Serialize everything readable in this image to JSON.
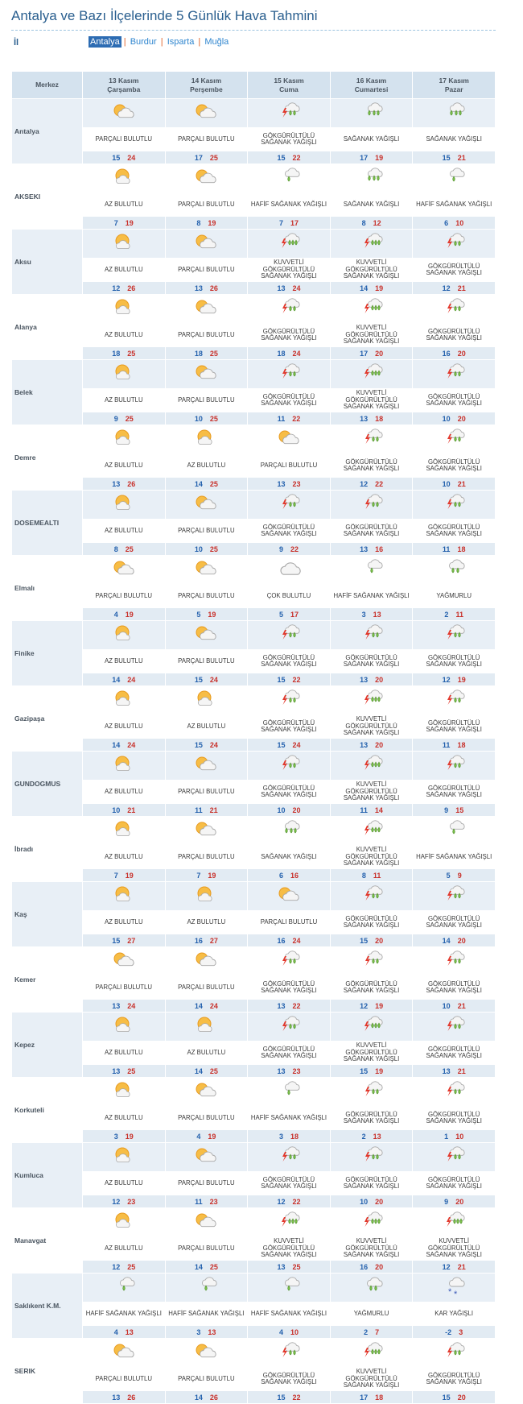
{
  "header": {
    "title": "Antalya ve Bazı İlçelerinde 5 Günlük Hava Tahmini",
    "label": "İl",
    "tabs": [
      "Antalya",
      "Burdur",
      "Isparta",
      "Muğla"
    ]
  },
  "table": {
    "corner": "Merkez",
    "columns": [
      {
        "date": "13 Kasım",
        "day": "Çarşamba"
      },
      {
        "date": "14 Kasım",
        "day": "Perşembe"
      },
      {
        "date": "15 Kasım",
        "day": "Cuma"
      },
      {
        "date": "16 Kasım",
        "day": "Cumartesi"
      },
      {
        "date": "17 Kasım",
        "day": "Pazar"
      }
    ],
    "rows": [
      {
        "name": "Antalya",
        "days": [
          {
            "condition": "PARÇALI BULUTLU",
            "min": 15,
            "max": 24
          },
          {
            "condition": "PARÇALI BULUTLU",
            "min": 17,
            "max": 25
          },
          {
            "condition": "GÖKGÜRÜLTÜLÜ SAĞANAK YAĞIŞLI",
            "min": 15,
            "max": 22
          },
          {
            "condition": "SAĞANAK YAĞIŞLI",
            "min": 17,
            "max": 19
          },
          {
            "condition": "SAĞANAK YAĞIŞLI",
            "min": 15,
            "max": 21
          }
        ]
      },
      {
        "name": "AKSEKI",
        "days": [
          {
            "condition": "AZ BULUTLU",
            "min": 7,
            "max": 19
          },
          {
            "condition": "PARÇALI BULUTLU",
            "min": 8,
            "max": 19
          },
          {
            "condition": "HAFİF SAĞANAK YAĞIŞLI",
            "min": 7,
            "max": 17
          },
          {
            "condition": "SAĞANAK YAĞIŞLI",
            "min": 8,
            "max": 12
          },
          {
            "condition": "HAFİF SAĞANAK YAĞIŞLI",
            "min": 6,
            "max": 10
          }
        ]
      },
      {
        "name": "Aksu",
        "days": [
          {
            "condition": "AZ BULUTLU",
            "min": 12,
            "max": 26
          },
          {
            "condition": "PARÇALI BULUTLU",
            "min": 13,
            "max": 26
          },
          {
            "condition": "KUVVETLİ GÖKGÜRÜLTÜLÜ SAĞANAK YAĞIŞLI",
            "min": 13,
            "max": 24
          },
          {
            "condition": "KUVVETLİ GÖKGÜRÜLTÜLÜ SAĞANAK YAĞIŞLI",
            "min": 14,
            "max": 19
          },
          {
            "condition": "GÖKGÜRÜLTÜLÜ SAĞANAK YAĞIŞLI",
            "min": 12,
            "max": 21
          }
        ]
      },
      {
        "name": "Alanya",
        "days": [
          {
            "condition": "AZ BULUTLU",
            "min": 18,
            "max": 25
          },
          {
            "condition": "PARÇALI BULUTLU",
            "min": 18,
            "max": 25
          },
          {
            "condition": "GÖKGÜRÜLTÜLÜ SAĞANAK YAĞIŞLI",
            "min": 18,
            "max": 24
          },
          {
            "condition": "KUVVETLİ GÖKGÜRÜLTÜLÜ SAĞANAK YAĞIŞLI",
            "min": 17,
            "max": 20
          },
          {
            "condition": "GÖKGÜRÜLTÜLÜ SAĞANAK YAĞIŞLI",
            "min": 16,
            "max": 20
          }
        ]
      },
      {
        "name": "Belek",
        "days": [
          {
            "condition": "AZ BULUTLU",
            "min": 9,
            "max": 25
          },
          {
            "condition": "PARÇALI BULUTLU",
            "min": 10,
            "max": 25
          },
          {
            "condition": "GÖKGÜRÜLTÜLÜ SAĞANAK YAĞIŞLI",
            "min": 11,
            "max": 22
          },
          {
            "condition": "KUVVETLİ GÖKGÜRÜLTÜLÜ SAĞANAK YAĞIŞLI",
            "min": 13,
            "max": 18
          },
          {
            "condition": "GÖKGÜRÜLTÜLÜ SAĞANAK YAĞIŞLI",
            "min": 10,
            "max": 20
          }
        ]
      },
      {
        "name": "Demre",
        "days": [
          {
            "condition": "AZ BULUTLU",
            "min": 13,
            "max": 26
          },
          {
            "condition": "AZ BULUTLU",
            "min": 14,
            "max": 25
          },
          {
            "condition": "PARÇALI BULUTLU",
            "min": 13,
            "max": 23
          },
          {
            "condition": "GÖKGÜRÜLTÜLÜ SAĞANAK YAĞIŞLI",
            "min": 12,
            "max": 22
          },
          {
            "condition": "GÖKGÜRÜLTÜLÜ SAĞANAK YAĞIŞLI",
            "min": 10,
            "max": 21
          }
        ]
      },
      {
        "name": "DOSEMEALTI",
        "days": [
          {
            "condition": "AZ BULUTLU",
            "min": 8,
            "max": 25
          },
          {
            "condition": "PARÇALI BULUTLU",
            "min": 10,
            "max": 25
          },
          {
            "condition": "GÖKGÜRÜLTÜLÜ SAĞANAK YAĞIŞLI",
            "min": 9,
            "max": 22
          },
          {
            "condition": "GÖKGÜRÜLTÜLÜ SAĞANAK YAĞIŞLI",
            "min": 13,
            "max": 16
          },
          {
            "condition": "GÖKGÜRÜLTÜLÜ SAĞANAK YAĞIŞLI",
            "min": 11,
            "max": 18
          }
        ]
      },
      {
        "name": "Elmalı",
        "days": [
          {
            "condition": "PARÇALI BULUTLU",
            "min": 4,
            "max": 19
          },
          {
            "condition": "PARÇALI BULUTLU",
            "min": 5,
            "max": 19
          },
          {
            "condition": "ÇOK BULUTLU",
            "min": 5,
            "max": 17
          },
          {
            "condition": "HAFİF SAĞANAK YAĞIŞLI",
            "min": 3,
            "max": 13
          },
          {
            "condition": "YAĞMURLU",
            "min": 2,
            "max": 11
          }
        ]
      },
      {
        "name": "Finike",
        "days": [
          {
            "condition": "AZ BULUTLU",
            "min": 14,
            "max": 24
          },
          {
            "condition": "PARÇALI BULUTLU",
            "min": 15,
            "max": 24
          },
          {
            "condition": "GÖKGÜRÜLTÜLÜ SAĞANAK YAĞIŞLI",
            "min": 15,
            "max": 22
          },
          {
            "condition": "GÖKGÜRÜLTÜLÜ SAĞANAK YAĞIŞLI",
            "min": 13,
            "max": 20
          },
          {
            "condition": "GÖKGÜRÜLTÜLÜ SAĞANAK YAĞIŞLI",
            "min": 12,
            "max": 19
          }
        ]
      },
      {
        "name": "Gazipaşa",
        "days": [
          {
            "condition": "AZ BULUTLU",
            "min": 14,
            "max": 24
          },
          {
            "condition": "AZ BULUTLU",
            "min": 15,
            "max": 24
          },
          {
            "condition": "GÖKGÜRÜLTÜLÜ SAĞANAK YAĞIŞLI",
            "min": 15,
            "max": 24
          },
          {
            "condition": "KUVVETLİ GÖKGÜRÜLTÜLÜ SAĞANAK YAĞIŞLI",
            "min": 13,
            "max": 20
          },
          {
            "condition": "GÖKGÜRÜLTÜLÜ SAĞANAK YAĞIŞLI",
            "min": 11,
            "max": 18
          }
        ]
      },
      {
        "name": "GUNDOGMUS",
        "days": [
          {
            "condition": "AZ BULUTLU",
            "min": 10,
            "max": 21
          },
          {
            "condition": "PARÇALI BULUTLU",
            "min": 11,
            "max": 21
          },
          {
            "condition": "GÖKGÜRÜLTÜLÜ SAĞANAK YAĞIŞLI",
            "min": 10,
            "max": 20
          },
          {
            "condition": "KUVVETLİ GÖKGÜRÜLTÜLÜ SAĞANAK YAĞIŞLI",
            "min": 11,
            "max": 14
          },
          {
            "condition": "GÖKGÜRÜLTÜLÜ SAĞANAK YAĞIŞLI",
            "min": 9,
            "max": 15
          }
        ]
      },
      {
        "name": "İbradı",
        "days": [
          {
            "condition": "AZ BULUTLU",
            "min": 7,
            "max": 19
          },
          {
            "condition": "PARÇALI BULUTLU",
            "min": 7,
            "max": 19
          },
          {
            "condition": "SAĞANAK YAĞIŞLI",
            "min": 6,
            "max": 16
          },
          {
            "condition": "KUVVETLİ GÖKGÜRÜLTÜLÜ SAĞANAK YAĞIŞLI",
            "min": 8,
            "max": 11
          },
          {
            "condition": "HAFİF SAĞANAK YAĞIŞLI",
            "min": 5,
            "max": 9
          }
        ]
      },
      {
        "name": "Kaş",
        "days": [
          {
            "condition": "AZ BULUTLU",
            "min": 15,
            "max": 27
          },
          {
            "condition": "AZ BULUTLU",
            "min": 16,
            "max": 27
          },
          {
            "condition": "PARÇALI BULUTLU",
            "min": 16,
            "max": 24
          },
          {
            "condition": "GÖKGÜRÜLTÜLÜ SAĞANAK YAĞIŞLI",
            "min": 15,
            "max": 20
          },
          {
            "condition": "GÖKGÜRÜLTÜLÜ SAĞANAK YAĞIŞLI",
            "min": 14,
            "max": 20
          }
        ]
      },
      {
        "name": "Kemer",
        "days": [
          {
            "condition": "PARÇALI BULUTLU",
            "min": 13,
            "max": 24
          },
          {
            "condition": "PARÇALI BULUTLU",
            "min": 14,
            "max": 24
          },
          {
            "condition": "GÖKGÜRÜLTÜLÜ SAĞANAK YAĞIŞLI",
            "min": 13,
            "max": 22
          },
          {
            "condition": "GÖKGÜRÜLTÜLÜ SAĞANAK YAĞIŞLI",
            "min": 12,
            "max": 19
          },
          {
            "condition": "GÖKGÜRÜLTÜLÜ SAĞANAK YAĞIŞLI",
            "min": 10,
            "max": 21
          }
        ]
      },
      {
        "name": "Kepez",
        "days": [
          {
            "condition": "AZ BULUTLU",
            "min": 13,
            "max": 25
          },
          {
            "condition": "AZ BULUTLU",
            "min": 14,
            "max": 25
          },
          {
            "condition": "GÖKGÜRÜLTÜLÜ SAĞANAK YAĞIŞLI",
            "min": 13,
            "max": 23
          },
          {
            "condition": "KUVVETLİ GÖKGÜRÜLTÜLÜ SAĞANAK YAĞIŞLI",
            "min": 15,
            "max": 19
          },
          {
            "condition": "GÖKGÜRÜLTÜLÜ SAĞANAK YAĞIŞLI",
            "min": 13,
            "max": 21
          }
        ]
      },
      {
        "name": "Korkuteli",
        "days": [
          {
            "condition": "AZ BULUTLU",
            "min": 3,
            "max": 19
          },
          {
            "condition": "PARÇALI BULUTLU",
            "min": 4,
            "max": 19
          },
          {
            "condition": "HAFİF SAĞANAK YAĞIŞLI",
            "min": 3,
            "max": 18
          },
          {
            "condition": "GÖKGÜRÜLTÜLÜ SAĞANAK YAĞIŞLI",
            "min": 2,
            "max": 13
          },
          {
            "condition": "GÖKGÜRÜLTÜLÜ SAĞANAK YAĞIŞLI",
            "min": 1,
            "max": 10
          }
        ]
      },
      {
        "name": "Kumluca",
        "days": [
          {
            "condition": "AZ BULUTLU",
            "min": 12,
            "max": 23
          },
          {
            "condition": "PARÇALI BULUTLU",
            "min": 11,
            "max": 23
          },
          {
            "condition": "GÖKGÜRÜLTÜLÜ SAĞANAK YAĞIŞLI",
            "min": 12,
            "max": 22
          },
          {
            "condition": "GÖKGÜRÜLTÜLÜ SAĞANAK YAĞIŞLI",
            "min": 10,
            "max": 20
          },
          {
            "condition": "GÖKGÜRÜLTÜLÜ SAĞANAK YAĞIŞLI",
            "min": 9,
            "max": 20
          }
        ]
      },
      {
        "name": "Manavgat",
        "days": [
          {
            "condition": "AZ BULUTLU",
            "min": 12,
            "max": 25
          },
          {
            "condition": "PARÇALI BULUTLU",
            "min": 14,
            "max": 25
          },
          {
            "condition": "KUVVETLİ GÖKGÜRÜLTÜLÜ SAĞANAK YAĞIŞLI",
            "min": 13,
            "max": 25
          },
          {
            "condition": "KUVVETLİ GÖKGÜRÜLTÜLÜ SAĞANAK YAĞIŞLI",
            "min": 16,
            "max": 20
          },
          {
            "condition": "KUVVETLİ GÖKGÜRÜLTÜLÜ SAĞANAK YAĞIŞLI",
            "min": 12,
            "max": 21
          }
        ]
      },
      {
        "name": "Saklıkent K.M.",
        "days": [
          {
            "condition": "HAFİF SAĞANAK YAĞIŞLI",
            "min": 4,
            "max": 13
          },
          {
            "condition": "HAFİF SAĞANAK YAĞIŞLI",
            "min": 3,
            "max": 13
          },
          {
            "condition": "HAFİF SAĞANAK YAĞIŞLI",
            "min": 4,
            "max": 10
          },
          {
            "condition": "YAĞMURLU",
            "min": 2,
            "max": 7
          },
          {
            "condition": "KAR YAĞIŞLI",
            "min": -2,
            "max": 3
          }
        ]
      },
      {
        "name": "SERIK",
        "days": [
          {
            "condition": "PARÇALI BULUTLU",
            "min": 13,
            "max": 26
          },
          {
            "condition": "PARÇALI BULUTLU",
            "min": 14,
            "max": 26
          },
          {
            "condition": "GÖKGÜRÜLTÜLÜ SAĞANAK YAĞIŞLI",
            "min": 15,
            "max": 22
          },
          {
            "condition": "KUVVETLİ GÖKGÜRÜLTÜLÜ SAĞANAK YAĞIŞLI",
            "min": 17,
            "max": 18
          },
          {
            "condition": "GÖKGÜRÜLTÜLÜ SAĞANAK YAĞIŞLI",
            "min": 15,
            "max": 20
          }
        ]
      }
    ]
  }
}
